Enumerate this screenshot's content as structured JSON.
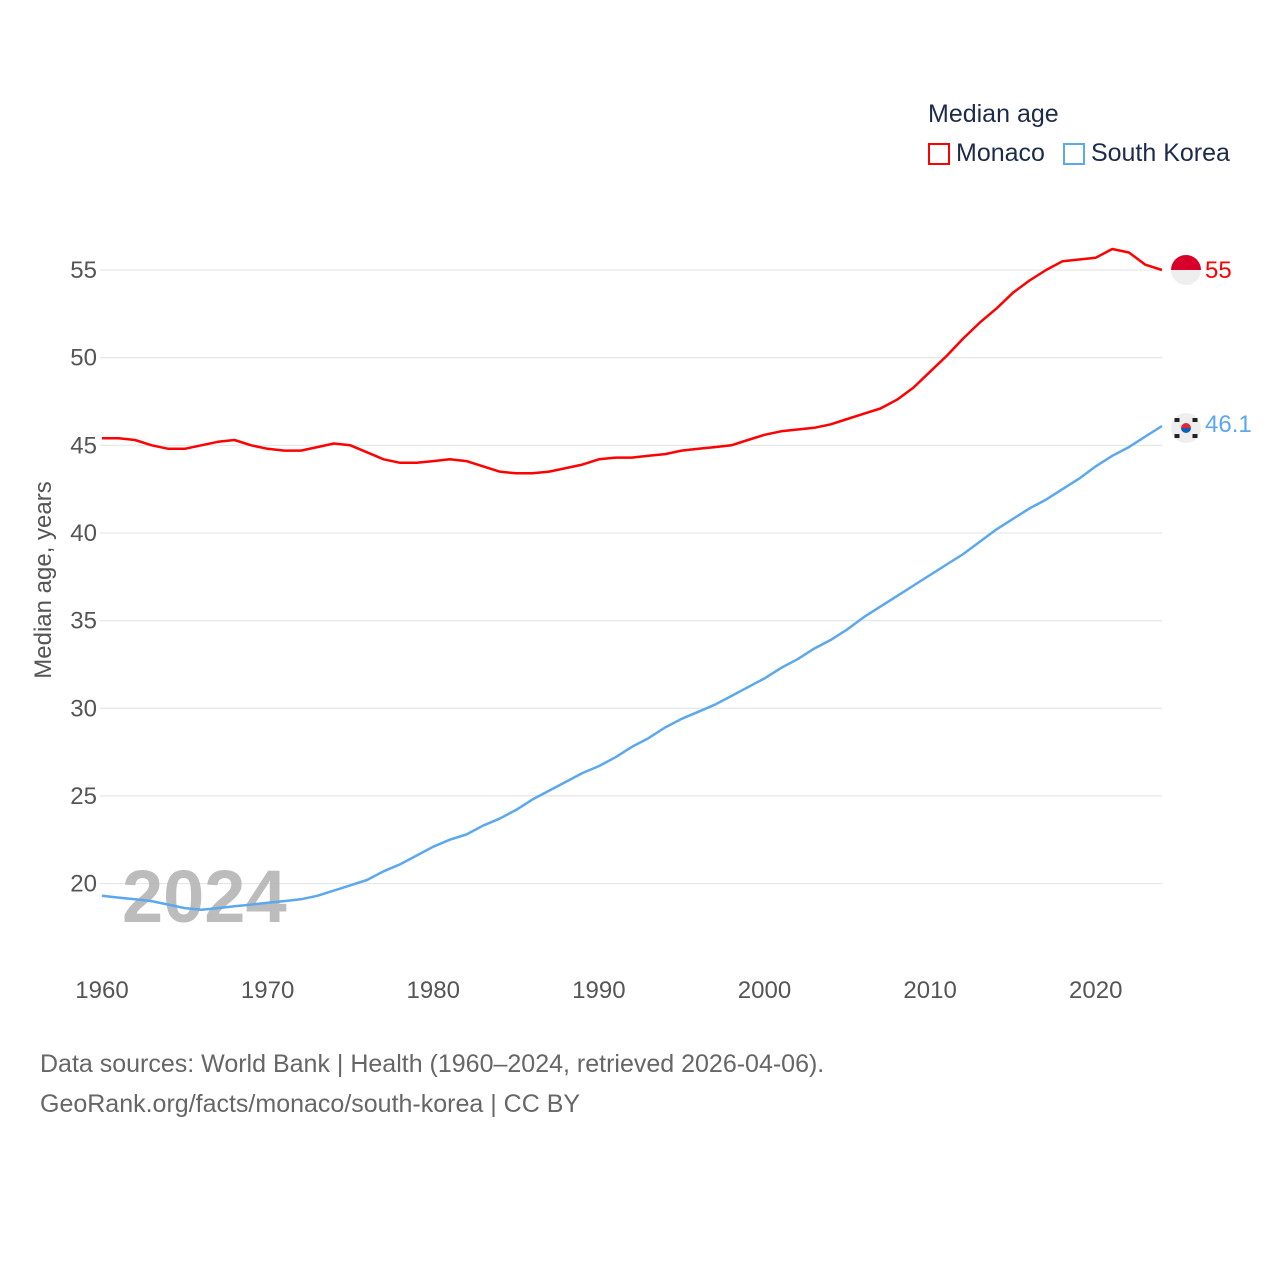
{
  "legend": {
    "title": "Median age",
    "items": [
      {
        "label": "Monaco",
        "color": "#ff0000"
      },
      {
        "label": "South Korea",
        "color": "#5ba8ee"
      }
    ]
  },
  "watermark_year": "2024",
  "footer": {
    "line1": "Data sources: World Bank | Health (1960–2024, retrieved 2026-04-06).",
    "line2": "GeoRank.org/facts/monaco/south-korea | CC BY"
  },
  "chart_data": {
    "type": "line",
    "title": "Median age",
    "xlabel": "",
    "ylabel": "Median age, years",
    "xlim": [
      1960,
      2024
    ],
    "ylim": [
      16,
      58
    ],
    "x_ticks": [
      1960,
      1970,
      1980,
      1990,
      2000,
      2010,
      2020
    ],
    "y_ticks": [
      20,
      25,
      30,
      35,
      40,
      45,
      50,
      55
    ],
    "grid": true,
    "legend_position": "top-right",
    "x": [
      1960,
      1961,
      1962,
      1963,
      1964,
      1965,
      1966,
      1967,
      1968,
      1969,
      1970,
      1971,
      1972,
      1973,
      1974,
      1975,
      1976,
      1977,
      1978,
      1979,
      1980,
      1981,
      1982,
      1983,
      1984,
      1985,
      1986,
      1987,
      1988,
      1989,
      1990,
      1991,
      1992,
      1993,
      1994,
      1995,
      1996,
      1997,
      1998,
      1999,
      2000,
      2001,
      2002,
      2003,
      2004,
      2005,
      2006,
      2007,
      2008,
      2009,
      2010,
      2011,
      2012,
      2013,
      2014,
      2015,
      2016,
      2017,
      2018,
      2019,
      2020,
      2021,
      2022,
      2023,
      2024
    ],
    "series": [
      {
        "name": "Monaco",
        "color": "#ff0000",
        "end_label": "55",
        "values": [
          45.4,
          45.4,
          45.3,
          45.0,
          44.8,
          44.8,
          45.0,
          45.2,
          45.3,
          45.0,
          44.8,
          44.7,
          44.7,
          44.9,
          45.1,
          45.0,
          44.6,
          44.2,
          44.0,
          44.0,
          44.1,
          44.2,
          44.1,
          43.8,
          43.5,
          43.4,
          43.4,
          43.5,
          43.7,
          43.9,
          44.2,
          44.3,
          44.3,
          44.4,
          44.5,
          44.7,
          44.8,
          44.9,
          45.0,
          45.3,
          45.6,
          45.8,
          45.9,
          46.0,
          46.2,
          46.5,
          46.8,
          47.1,
          47.6,
          48.3,
          49.2,
          50.1,
          51.1,
          52.0,
          52.8,
          53.7,
          54.4,
          55.0,
          55.5,
          55.6,
          55.7,
          56.2,
          56.0,
          55.3,
          55.0
        ]
      },
      {
        "name": "South Korea",
        "color": "#5ba8ee",
        "end_label": "46.1",
        "values": [
          19.3,
          19.2,
          19.1,
          19.0,
          18.8,
          18.6,
          18.5,
          18.6,
          18.7,
          18.8,
          18.9,
          19.0,
          19.1,
          19.3,
          19.6,
          19.9,
          20.2,
          20.7,
          21.1,
          21.6,
          22.1,
          22.5,
          22.8,
          23.3,
          23.7,
          24.2,
          24.8,
          25.3,
          25.8,
          26.3,
          26.7,
          27.2,
          27.8,
          28.3,
          28.9,
          29.4,
          29.8,
          30.2,
          30.7,
          31.2,
          31.7,
          32.3,
          32.8,
          33.4,
          33.9,
          34.5,
          35.2,
          35.8,
          36.4,
          37.0,
          37.6,
          38.2,
          38.8,
          39.5,
          40.2,
          40.8,
          41.4,
          41.9,
          42.5,
          43.1,
          43.8,
          44.4,
          44.9,
          45.5,
          46.1
        ]
      }
    ]
  }
}
